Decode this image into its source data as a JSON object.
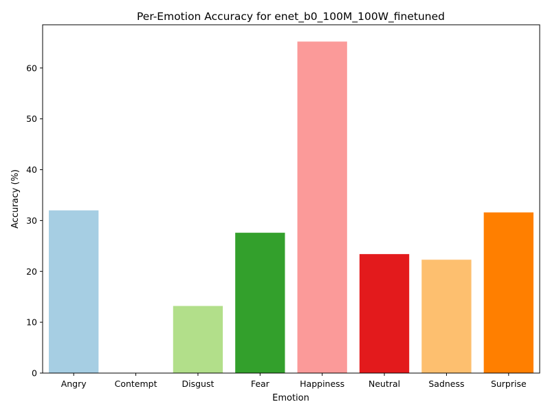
{
  "chart_data": {
    "type": "bar",
    "title": "Per-Emotion Accuracy for enet_b0_100M_100W_finetuned",
    "xlabel": "Emotion",
    "ylabel": "Accuracy (%)",
    "categories": [
      "Angry",
      "Contempt",
      "Disgust",
      "Fear",
      "Happiness",
      "Neutral",
      "Sadness",
      "Surprise"
    ],
    "values": [
      32.0,
      0.0,
      13.2,
      27.6,
      65.2,
      23.4,
      22.3,
      31.6
    ],
    "colors": [
      "#a6cee3",
      "#1f78b4",
      "#b2df8a",
      "#33a02c",
      "#fb9a99",
      "#e31a1c",
      "#fdbf6f",
      "#ff7f00"
    ],
    "ylim": [
      0,
      68.5
    ],
    "yticks": [
      0,
      10,
      20,
      30,
      40,
      50,
      60
    ],
    "grid": false,
    "legend": "none"
  }
}
